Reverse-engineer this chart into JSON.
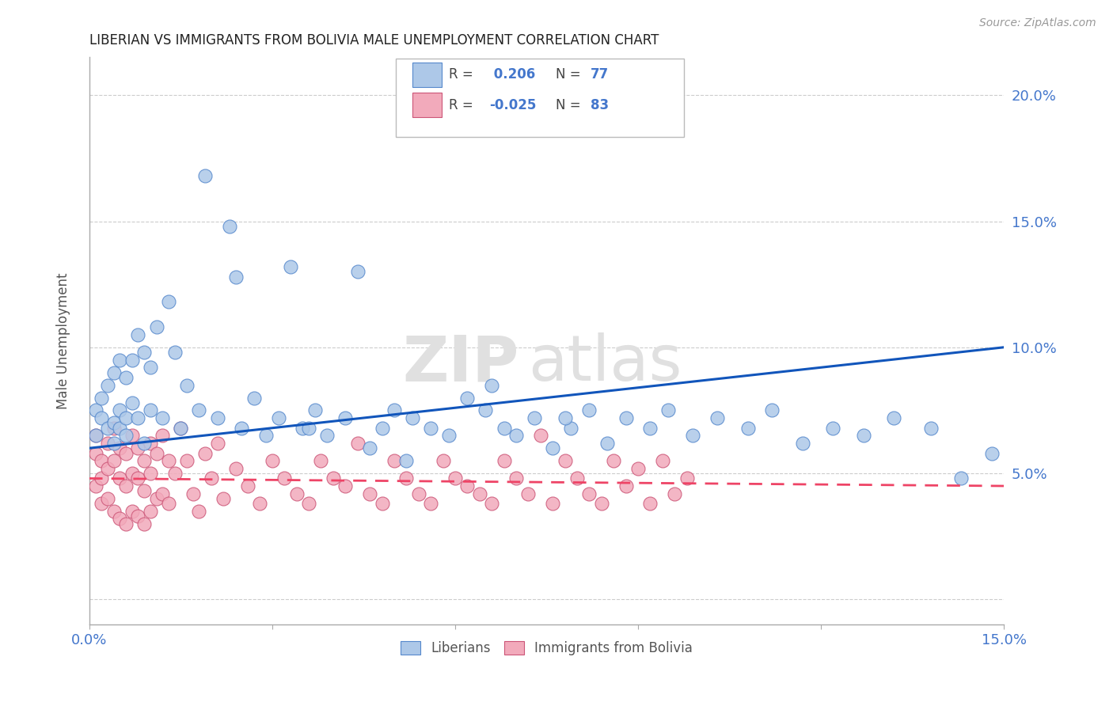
{
  "title": "LIBERIAN VS IMMIGRANTS FROM BOLIVIA MALE UNEMPLOYMENT CORRELATION CHART",
  "source": "Source: ZipAtlas.com",
  "ylabel": "Male Unemployment",
  "watermark_zip": "ZIP",
  "watermark_atlas": "atlas",
  "xlim": [
    0.0,
    0.15
  ],
  "ylim": [
    -0.01,
    0.215
  ],
  "xticks": [
    0.0,
    0.03,
    0.06,
    0.09,
    0.12,
    0.15
  ],
  "xtick_labels": [
    "0.0%",
    "",
    "",
    "",
    "",
    "15.0%"
  ],
  "yticks": [
    0.0,
    0.05,
    0.1,
    0.15,
    0.2
  ],
  "ytick_labels": [
    "",
    "5.0%",
    "10.0%",
    "15.0%",
    "20.0%"
  ],
  "liberian_color": "#adc8e8",
  "liberian_edge": "#5588cc",
  "bolivia_color": "#f2aabb",
  "bolivia_edge": "#cc5577",
  "trend_liberian_color": "#1155bb",
  "trend_bolivia_color": "#ee4466",
  "R_liberian": 0.206,
  "N_liberian": 77,
  "R_bolivia": -0.025,
  "N_bolivia": 83,
  "legend_label_1": "Liberians",
  "legend_label_2": "Immigrants from Bolivia",
  "title_color": "#222222",
  "axis_color": "#4477cc",
  "grid_color": "#cccccc",
  "trend_lib_x0": 0.0,
  "trend_lib_y0": 0.06,
  "trend_lib_x1": 0.15,
  "trend_lib_y1": 0.1,
  "trend_bol_x0": 0.0,
  "trend_bol_y0": 0.048,
  "trend_bol_x1": 0.15,
  "trend_bol_y1": 0.045,
  "liberian_x": [
    0.001,
    0.001,
    0.002,
    0.002,
    0.003,
    0.003,
    0.004,
    0.004,
    0.004,
    0.005,
    0.005,
    0.005,
    0.006,
    0.006,
    0.006,
    0.007,
    0.007,
    0.008,
    0.008,
    0.009,
    0.009,
    0.01,
    0.01,
    0.011,
    0.012,
    0.013,
    0.014,
    0.015,
    0.016,
    0.018,
    0.019,
    0.021,
    0.023,
    0.025,
    0.027,
    0.029,
    0.031,
    0.033,
    0.035,
    0.037,
    0.039,
    0.042,
    0.044,
    0.046,
    0.048,
    0.05,
    0.053,
    0.056,
    0.059,
    0.062,
    0.065,
    0.068,
    0.07,
    0.073,
    0.076,
    0.079,
    0.082,
    0.085,
    0.088,
    0.092,
    0.095,
    0.099,
    0.103,
    0.108,
    0.112,
    0.117,
    0.122,
    0.127,
    0.132,
    0.138,
    0.143,
    0.148,
    0.024,
    0.036,
    0.052,
    0.066,
    0.078
  ],
  "liberian_y": [
    0.065,
    0.075,
    0.072,
    0.08,
    0.068,
    0.085,
    0.07,
    0.09,
    0.062,
    0.075,
    0.068,
    0.095,
    0.072,
    0.065,
    0.088,
    0.095,
    0.078,
    0.105,
    0.072,
    0.098,
    0.062,
    0.092,
    0.075,
    0.108,
    0.072,
    0.118,
    0.098,
    0.068,
    0.085,
    0.075,
    0.168,
    0.072,
    0.148,
    0.068,
    0.08,
    0.065,
    0.072,
    0.132,
    0.068,
    0.075,
    0.065,
    0.072,
    0.13,
    0.06,
    0.068,
    0.075,
    0.072,
    0.068,
    0.065,
    0.08,
    0.075,
    0.068,
    0.065,
    0.072,
    0.06,
    0.068,
    0.075,
    0.062,
    0.072,
    0.068,
    0.075,
    0.065,
    0.072,
    0.068,
    0.075,
    0.062,
    0.068,
    0.065,
    0.072,
    0.068,
    0.048,
    0.058,
    0.128,
    0.068,
    0.055,
    0.085,
    0.072
  ],
  "bolivia_x": [
    0.001,
    0.001,
    0.001,
    0.002,
    0.002,
    0.002,
    0.003,
    0.003,
    0.003,
    0.004,
    0.004,
    0.004,
    0.005,
    0.005,
    0.005,
    0.006,
    0.006,
    0.006,
    0.007,
    0.007,
    0.007,
    0.008,
    0.008,
    0.008,
    0.009,
    0.009,
    0.009,
    0.01,
    0.01,
    0.01,
    0.011,
    0.011,
    0.012,
    0.012,
    0.013,
    0.013,
    0.014,
    0.015,
    0.016,
    0.017,
    0.018,
    0.019,
    0.02,
    0.021,
    0.022,
    0.024,
    0.026,
    0.028,
    0.03,
    0.032,
    0.034,
    0.036,
    0.038,
    0.04,
    0.042,
    0.044,
    0.046,
    0.048,
    0.05,
    0.052,
    0.054,
    0.056,
    0.058,
    0.06,
    0.062,
    0.064,
    0.066,
    0.068,
    0.07,
    0.072,
    0.074,
    0.076,
    0.078,
    0.08,
    0.082,
    0.084,
    0.086,
    0.088,
    0.09,
    0.092,
    0.094,
    0.096,
    0.098
  ],
  "bolivia_y": [
    0.065,
    0.058,
    0.045,
    0.055,
    0.048,
    0.038,
    0.062,
    0.052,
    0.04,
    0.068,
    0.055,
    0.035,
    0.06,
    0.048,
    0.032,
    0.058,
    0.045,
    0.03,
    0.065,
    0.05,
    0.035,
    0.06,
    0.048,
    0.033,
    0.055,
    0.043,
    0.03,
    0.062,
    0.05,
    0.035,
    0.058,
    0.04,
    0.065,
    0.042,
    0.055,
    0.038,
    0.05,
    0.068,
    0.055,
    0.042,
    0.035,
    0.058,
    0.048,
    0.062,
    0.04,
    0.052,
    0.045,
    0.038,
    0.055,
    0.048,
    0.042,
    0.038,
    0.055,
    0.048,
    0.045,
    0.062,
    0.042,
    0.038,
    0.055,
    0.048,
    0.042,
    0.038,
    0.055,
    0.048,
    0.045,
    0.042,
    0.038,
    0.055,
    0.048,
    0.042,
    0.065,
    0.038,
    0.055,
    0.048,
    0.042,
    0.038,
    0.055,
    0.045,
    0.052,
    0.038,
    0.055,
    0.042,
    0.048
  ]
}
